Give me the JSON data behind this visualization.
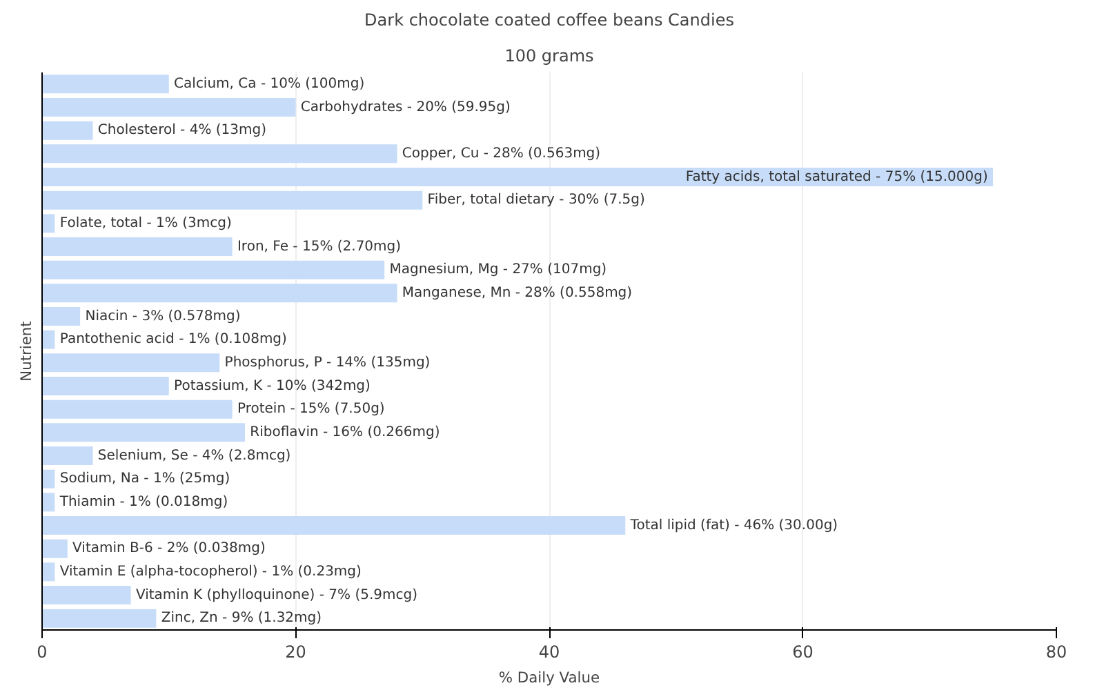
{
  "chart_data": {
    "type": "bar",
    "orientation": "horizontal",
    "title": "Dark chocolate coated coffee beans Candies",
    "subtitle": "100 grams",
    "xlabel": "% Daily Value",
    "ylabel": "Nutrient",
    "categories": [
      "Calcium, Ca -",
      "Carbohydrates -",
      "Cholesterol -",
      "Copper, Cu -",
      "Fatty acids, total saturated -",
      "Fiber, total dietary -",
      "Folate, total -",
      "Iron, Fe -",
      "Magnesium, Mg -",
      "Manganese, Mn -",
      "Niacin -",
      "Pantothenic acid -",
      "Phosphorus, P -",
      "Potassium, K -",
      "Protein -",
      "Riboflavin -",
      "Selenium, Se -",
      "Sodium, Na -",
      "Thiamin -",
      "Total lipid (fat) -",
      "Vitamin B-6 -",
      "Vitamin E (alpha-tocopherol) -",
      "Vitamin K (phylloquinone) -",
      "Zinc, Zn -"
    ],
    "values": [
      10,
      20,
      4,
      28,
      75,
      30,
      1,
      15,
      27,
      28,
      3,
      1,
      14,
      10,
      15,
      16,
      4,
      1,
      1,
      46,
      2,
      1,
      7,
      9
    ],
    "value_labels": [
      "10% (100mg)",
      "20% (59.95g)",
      "4% (13mg)",
      "28% (0.563mg)",
      "75% (15.000g)",
      "30% (7.5g)",
      "1% (3mcg)",
      "15% (2.70mg)",
      "27% (107mg)",
      "28% (0.558mg)",
      "3% (0.578mg)",
      "1% (0.108mg)",
      "14% (135mg)",
      "10% (342mg)",
      "15% (7.50g)",
      "16% (0.266mg)",
      "4% (2.8mcg)",
      "1% (25mg)",
      "1% (0.018mg)",
      "46% (30.00g)",
      "2% (0.038mg)",
      "1% (0.23mg)",
      "7% (5.9mcg)",
      "9% (1.32mg)"
    ],
    "color": "#c6dcf8",
    "xlim": [
      0,
      80
    ],
    "xticks": [
      0,
      20,
      40,
      60,
      80
    ],
    "grid": "x",
    "tick_labels": "x"
  }
}
